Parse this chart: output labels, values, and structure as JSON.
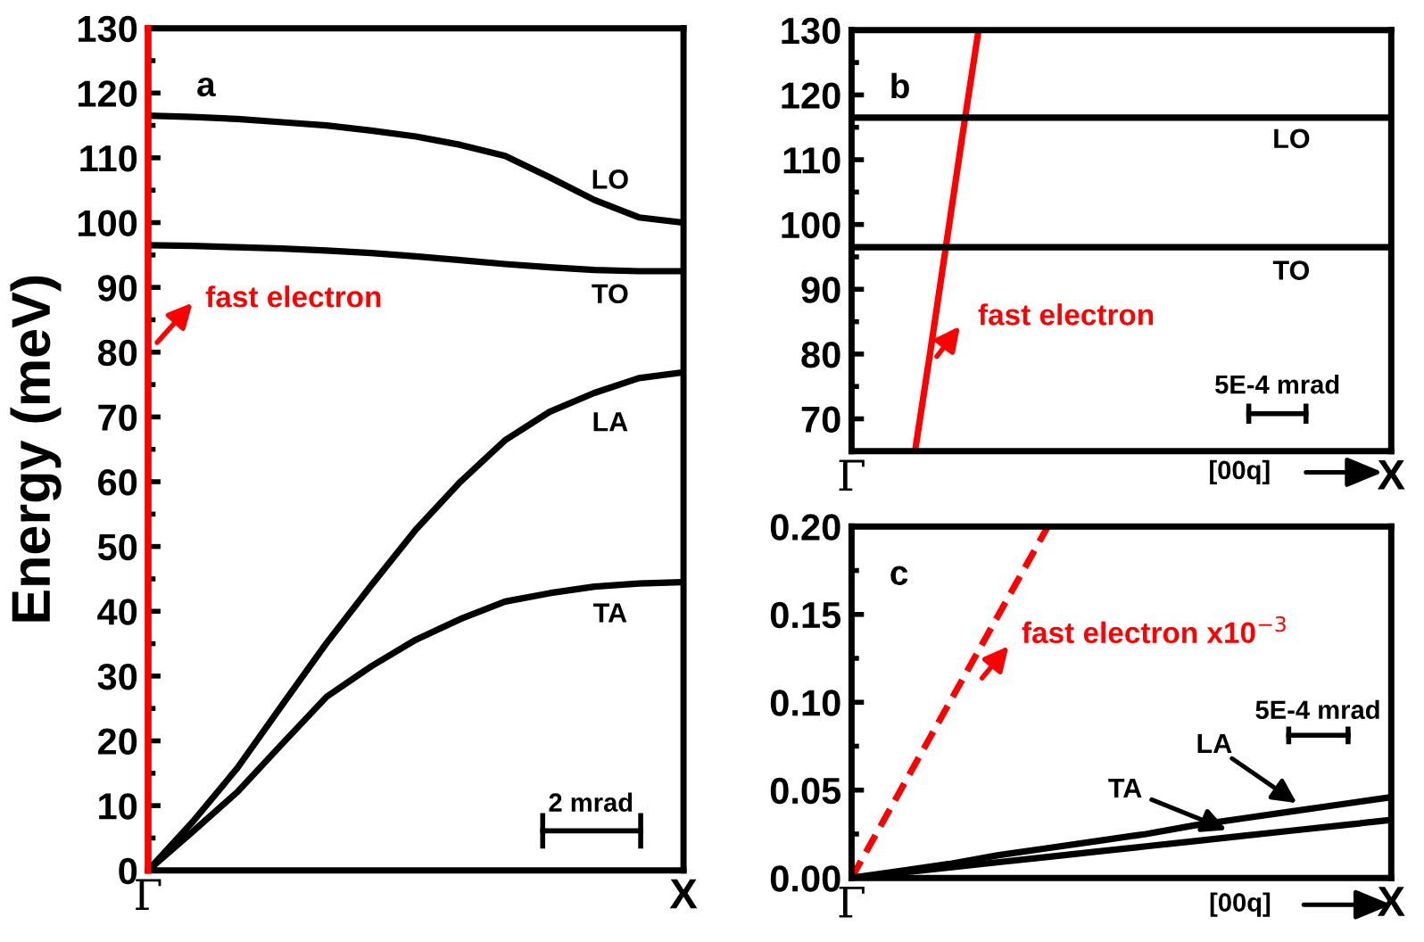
{
  "chart_data": [
    {
      "type": "line",
      "title": "a",
      "ylabel": "Energy (meV)",
      "categories": [
        "Γ",
        null,
        null,
        null,
        null,
        null,
        null,
        null,
        null,
        null,
        null,
        null,
        "X"
      ],
      "ylim": [
        0,
        130
      ],
      "yticks": [
        0,
        10,
        20,
        30,
        40,
        50,
        60,
        70,
        80,
        90,
        100,
        110,
        120,
        130
      ],
      "series": [
        {
          "color": "#000000",
          "line_style": "solid",
          "values": [
            116.5,
            116.3,
            116,
            115.5,
            115,
            114.2,
            113.3,
            112,
            110.3,
            107,
            103.5,
            100.8,
            100
          ]
        },
        {
          "color": "#000000",
          "line_style": "solid",
          "values": [
            96.5,
            96.4,
            96.2,
            96,
            95.7,
            95.3,
            94.8,
            94.2,
            93.6,
            93.1,
            92.7,
            92.5,
            92.5
          ]
        },
        {
          "color": "#000000",
          "line_style": "solid",
          "values": [
            0,
            7.5,
            15.8,
            25.5,
            35.1,
            44,
            52.6,
            60,
            66.4,
            70.8,
            73.7,
            76,
            76.9
          ]
        },
        {
          "color": "#000000",
          "line_style": "solid",
          "values": [
            0,
            6,
            12.1,
            19.5,
            26.8,
            31.5,
            35.6,
            38.8,
            41.5,
            42.8,
            43.8,
            44.3,
            44.5
          ]
        }
      ],
      "ref_lines": [
        {
          "axis": "x",
          "value": "Γ",
          "color": "#ff0000",
          "line_style": "solid"
        }
      ],
      "annotations": [
        "fast electron",
        "LO",
        "TO",
        "LA",
        "TA",
        "2 mrad"
      ]
    },
    {
      "type": "line",
      "title": "b",
      "categories": [
        "Γ",
        null,
        null,
        null,
        null,
        null,
        null,
        null,
        null,
        null,
        null,
        null,
        null,
        null,
        null,
        null,
        null,
        null,
        null,
        null,
        null,
        null,
        null,
        null,
        null,
        null,
        null,
        null,
        null,
        null,
        null,
        null,
        null,
        null,
        "X"
      ],
      "ylim": [
        65,
        130
      ],
      "yticks": [
        70,
        80,
        90,
        100,
        110,
        120,
        130
      ],
      "series": [
        {
          "color": "#ff0000",
          "line_style": "solid",
          "values": [
            null,
            null,
            null,
            null,
            65,
            81,
            97.5,
            114,
            130,
            null,
            null,
            null,
            null,
            null,
            null,
            null,
            null,
            null,
            null,
            null,
            null,
            null,
            null,
            null,
            null,
            null,
            null,
            null,
            null,
            null,
            null,
            null,
            null,
            null,
            null
          ]
        },
        {
          "color": "#000000",
          "line_style": "solid",
          "values": [
            116.5,
            116.5,
            116.5,
            116.5,
            116.5,
            116.5,
            116.5,
            116.5,
            116.5,
            116.5,
            116.5,
            116.5,
            116.5,
            116.5,
            116.5,
            116.5,
            116.5,
            116.5,
            116.5,
            116.5,
            116.5,
            116.5,
            116.5,
            116.5,
            116.5,
            116.5,
            116.5,
            116.5,
            116.5,
            116.5,
            116.5,
            116.5,
            116.5,
            116.5,
            116.5
          ]
        },
        {
          "color": "#000000",
          "line_style": "solid",
          "values": [
            96.5,
            96.5,
            96.5,
            96.5,
            96.5,
            96.5,
            96.5,
            96.5,
            96.5,
            96.5,
            96.5,
            96.5,
            96.5,
            96.5,
            96.5,
            96.5,
            96.5,
            96.5,
            96.5,
            96.5,
            96.5,
            96.5,
            96.5,
            96.5,
            96.5,
            96.5,
            96.5,
            96.5,
            96.5,
            96.5,
            96.5,
            96.5,
            96.5,
            96.5,
            96.5
          ]
        }
      ],
      "annotations": [
        "fast electron",
        "LO",
        "TO",
        "5E-4 mrad",
        "[00q]"
      ]
    },
    {
      "type": "line",
      "title": "c",
      "categories": [
        "Γ",
        null,
        null,
        null,
        null,
        null,
        null,
        null,
        null,
        null,
        null,
        "X"
      ],
      "ylim": [
        0,
        0.2
      ],
      "yticks": [
        {
          "value": 0,
          "label": "0.00"
        },
        {
          "value": 0.05,
          "label": "0.05"
        },
        {
          "value": 0.1,
          "label": "0.10"
        },
        {
          "value": 0.15,
          "label": "0.15"
        },
        {
          "value": 0.2,
          "label": "0.20"
        }
      ],
      "series": [
        {
          "color": "#ff0000",
          "line_style": "dashed",
          "values": [
            0,
            0.05,
            0.1,
            0.15,
            0.2,
            null,
            null,
            null,
            null,
            null,
            null,
            null
          ]
        },
        {
          "color": "#000000",
          "line_style": "solid",
          "values": [
            0,
            0.004,
            0.008,
            0.013,
            0.017,
            0.021,
            0.025,
            0.03,
            0.034,
            0.038,
            0.042,
            0.046
          ]
        },
        {
          "color": "#000000",
          "line_style": "solid",
          "values": [
            0,
            0.003,
            0.006,
            0.009,
            0.012,
            0.015,
            0.018,
            0.021,
            0.024,
            0.027,
            0.03,
            0.033
          ]
        }
      ],
      "annotations": [
        "fast electron x10$^{−3}$",
        "LA",
        "TA",
        "5E-4 mrad",
        "[00q]"
      ]
    }
  ]
}
